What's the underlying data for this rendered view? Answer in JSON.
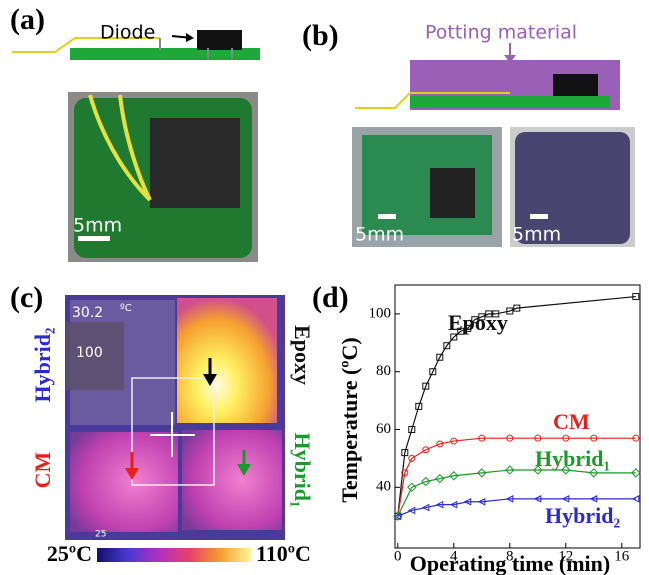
{
  "panels": {
    "a": {
      "label": "(a)",
      "diode": "Diode",
      "scale": "5mm"
    },
    "b": {
      "label": "(b)",
      "potting": "Potting material",
      "scale_left": "5mm",
      "scale_right": "5mm"
    },
    "c": {
      "label": "(c)",
      "readout": "30.2",
      "readout_unit": "ºC",
      "readout_max": "100",
      "readout_min": "25",
      "left_top": "Hybrid₂",
      "left_bottom": "CM",
      "right_top": "Epoxy",
      "right_bottom": "Hybrid₁",
      "colorbar_min": "25ºC",
      "colorbar_max": "110ºC"
    },
    "d": {
      "label": "(d)"
    }
  },
  "chart_data": {
    "type": "line",
    "x_label": "Operating time (min)",
    "y_label": "Temperature (ºC)",
    "xlim": [
      -0.2,
      17.3
    ],
    "ylim": [
      19,
      110
    ],
    "xticks": [
      0,
      4,
      8,
      12,
      16
    ],
    "yticks": [
      40,
      60,
      80,
      100
    ],
    "series": [
      {
        "name": "Epoxy",
        "color": "#111111",
        "marker": "square",
        "x": [
          0,
          0.5,
          1,
          1.5,
          2,
          2.5,
          3,
          3.5,
          4,
          4.5,
          5,
          5.5,
          6,
          6.5,
          7,
          8,
          8.5,
          17
        ],
        "values": [
          30,
          52,
          60,
          68,
          75,
          80,
          85,
          89,
          92,
          94,
          95,
          98,
          99,
          100,
          100,
          101,
          102,
          106
        ]
      },
      {
        "name": "CM",
        "color": "#e8201c",
        "marker": "circle",
        "x": [
          0,
          0.5,
          1,
          2,
          3,
          4,
          6,
          8,
          10,
          12,
          14,
          17
        ],
        "values": [
          30,
          45,
          50,
          53,
          55,
          56,
          57,
          57,
          57,
          57,
          57,
          57
        ]
      },
      {
        "name": "Hybrid₁",
        "color": "#1a9a2a",
        "marker": "diamond",
        "x": [
          0,
          1,
          2,
          3,
          4,
          6,
          8,
          10,
          12,
          14,
          17
        ],
        "values": [
          30,
          40,
          42,
          43,
          44,
          45,
          46,
          46,
          46,
          45,
          45
        ]
      },
      {
        "name": "Hybrid₂",
        "color": "#2a2ad0",
        "marker": "triangle",
        "x": [
          0,
          1,
          2,
          3,
          4,
          5,
          6,
          8,
          10,
          12,
          14,
          17
        ],
        "values": [
          30,
          32,
          33,
          34,
          34,
          35,
          35,
          36,
          36,
          36,
          36,
          36
        ]
      }
    ]
  }
}
